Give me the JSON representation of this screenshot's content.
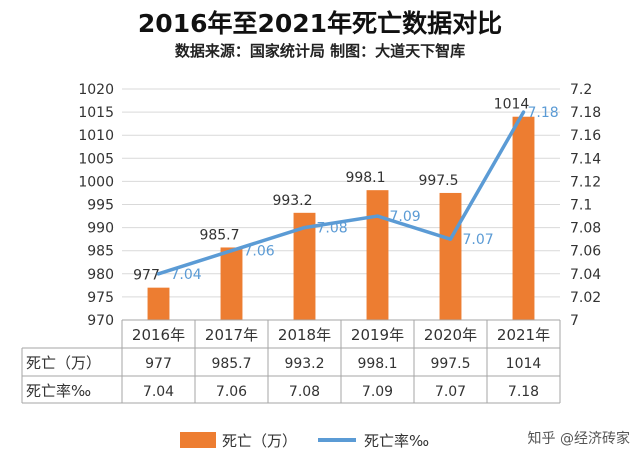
{
  "chart_data": {
    "type": "bar",
    "title": "2016年至2021年死亡数据对比",
    "subtitle": "数据来源：国家统计局   制图：大道天下智库",
    "categories": [
      "2016年",
      "2017年",
      "2018年",
      "2019年",
      "2020年",
      "2021年"
    ],
    "series": [
      {
        "name": "死亡（万）",
        "type": "bar",
        "axis": "left",
        "color": "#ED7D31",
        "values": [
          977,
          985.7,
          993.2,
          998.1,
          997.5,
          1014
        ],
        "labels": [
          "977",
          "985.7",
          "993.2",
          "998.1",
          "997.5",
          "1014"
        ]
      },
      {
        "name": "死亡率‰",
        "type": "line",
        "axis": "right",
        "color": "#5B9BD5",
        "values": [
          7.04,
          7.06,
          7.08,
          7.09,
          7.07,
          7.18
        ],
        "labels": [
          "7.04",
          "7.06",
          "7.08",
          "7.09",
          "7.07",
          "7.18"
        ]
      }
    ],
    "left_axis": {
      "min": 970,
      "max": 1020,
      "ticks": [
        970,
        975,
        980,
        985,
        990,
        995,
        1000,
        1005,
        1010,
        1015,
        1020
      ],
      "tick_labels": [
        "970",
        "975",
        "980",
        "985",
        "990",
        "995",
        "1000",
        "1005",
        "1010",
        "1015",
        "1020"
      ]
    },
    "right_axis": {
      "min": 7,
      "max": 7.2,
      "ticks": [
        7,
        7.02,
        7.04,
        7.06,
        7.08,
        7.1,
        7.12,
        7.14,
        7.16,
        7.18,
        7.2
      ],
      "tick_labels": [
        "7",
        "7.02",
        "7.04",
        "7.06",
        "7.08",
        "7.1",
        "7.12",
        "7.14",
        "7.16",
        "7.18",
        "7.2"
      ]
    },
    "table": {
      "row_labels": [
        "死亡（万）",
        "死亡率‰"
      ],
      "rows": [
        [
          "977",
          "985.7",
          "993.2",
          "998.1",
          "997.5",
          "1014"
        ],
        [
          "7.04",
          "7.06",
          "7.08",
          "7.09",
          "7.07",
          "7.18"
        ]
      ]
    },
    "grid": true,
    "legend_position": "bottom"
  },
  "watermark": "知乎 @经济砖家"
}
